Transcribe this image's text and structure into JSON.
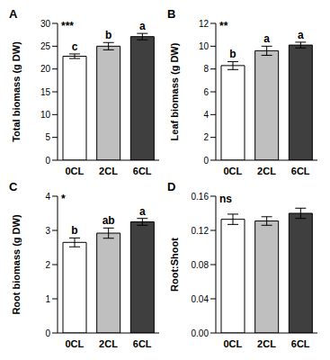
{
  "chart_data": [
    {
      "type": "bar",
      "title": "A",
      "y_label": "Total biomass (g DW)",
      "significance": "***",
      "categories": [
        "0CL",
        "2CL",
        "6CL"
      ],
      "values": [
        22.8,
        25.0,
        27.1
      ],
      "errors": [
        0.5,
        0.8,
        0.7
      ],
      "letters": [
        "c",
        "b",
        "a"
      ],
      "colors": [
        "#ffffff",
        "#bfbfbf",
        "#3f3f3f"
      ],
      "ylim": [
        0,
        30
      ],
      "yticks": [
        0,
        5,
        10,
        15,
        20,
        25,
        30
      ]
    },
    {
      "type": "bar",
      "title": "B",
      "y_label": "Leaf biomass (g DW)",
      "significance": "**",
      "categories": [
        "0CL",
        "2CL",
        "6CL"
      ],
      "values": [
        8.3,
        9.6,
        10.1
      ],
      "errors": [
        0.35,
        0.4,
        0.25
      ],
      "letters": [
        "b",
        "a",
        "a"
      ],
      "colors": [
        "#ffffff",
        "#bfbfbf",
        "#3f3f3f"
      ],
      "ylim": [
        0,
        12
      ],
      "yticks": [
        0,
        2,
        4,
        6,
        8,
        10,
        12
      ]
    },
    {
      "type": "bar",
      "title": "C",
      "y_label": "Root biomass (g DW)",
      "significance": "*",
      "categories": [
        "0CL",
        "2CL",
        "6CL"
      ],
      "values": [
        2.65,
        2.92,
        3.25
      ],
      "errors": [
        0.13,
        0.15,
        0.1
      ],
      "letters": [
        "b",
        "ab",
        "a"
      ],
      "colors": [
        "#ffffff",
        "#bfbfbf",
        "#3f3f3f"
      ],
      "ylim": [
        0,
        4
      ],
      "yticks": [
        0,
        1,
        2,
        3,
        4
      ]
    },
    {
      "type": "bar",
      "title": "D",
      "y_label": "Root:Shoot",
      "significance": "ns",
      "categories": [
        "0CL",
        "2CL",
        "6CL"
      ],
      "values": [
        0.133,
        0.131,
        0.14
      ],
      "errors": [
        0.006,
        0.005,
        0.006
      ],
      "colors": [
        "#ffffff",
        "#bfbfbf",
        "#3f3f3f"
      ],
      "ylim": [
        0,
        0.16
      ],
      "yticks": [
        {
          "value": 0,
          "label": "0.00"
        },
        {
          "value": 0.04,
          "label": "0.04"
        },
        {
          "value": 0.08,
          "label": "0.08"
        },
        {
          "value": 0.12,
          "label": "0.12"
        },
        {
          "value": 0.16,
          "label": "0.16"
        }
      ]
    }
  ]
}
